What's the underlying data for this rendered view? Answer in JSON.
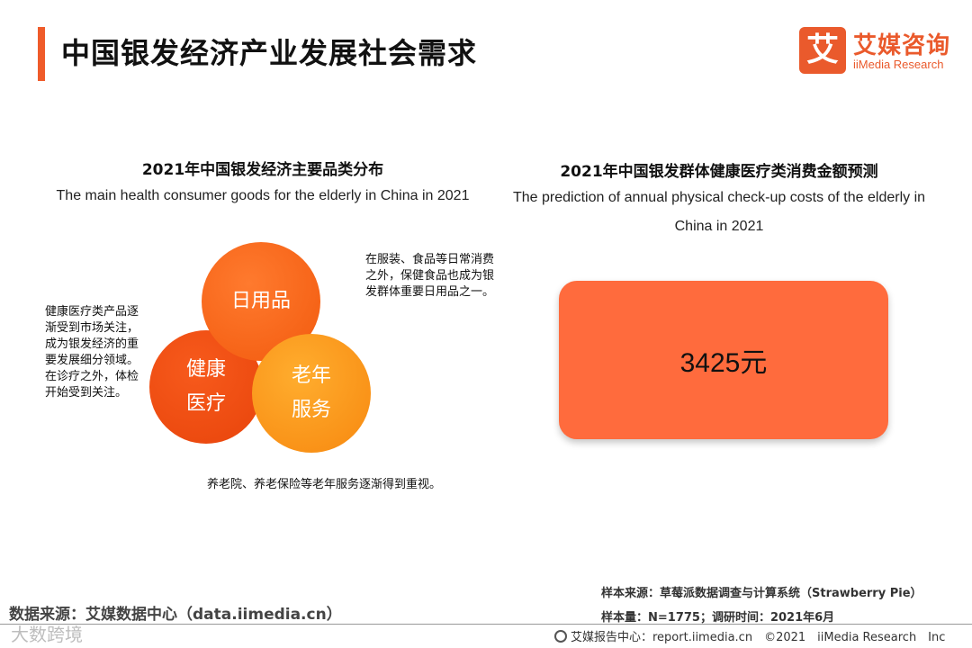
{
  "header": {
    "title": "中国银发经济产业发展社会需求",
    "logo_icon": "艾",
    "logo_cn": "艾媒咨询",
    "logo_en": "iiMedia Research",
    "accent_color": "#ef5b2a"
  },
  "left_panel": {
    "title": "2021年中国银发经济主要品类分布",
    "subtitle": "The main health consumer goods for the elderly in China in 2021",
    "circles": {
      "daily": "日用品",
      "health": "健康\n医疗",
      "service": "老年\n服务"
    },
    "notes": {
      "daily": "在服装、食品等日常消费之外，保健食品也成为银发群体重要日用品之一。",
      "health": "健康医疗类产品逐渐受到市场关注，成为银发经济的重要发展细分领域。在诊疗之外，体检开始受到关注。",
      "service": "养老院、养老保险等老年服务逐渐得到重视。"
    }
  },
  "right_panel": {
    "title": "2021年中国银发群体健康医疗类消费金额预测",
    "subtitle": "The prediction of annual physical check-up costs of the elderly in China in 2021",
    "value": "3425元",
    "box_color": "#ff6b3d"
  },
  "footer": {
    "data_source": "数据来源：艾媒数据中心（data.iimedia.cn）",
    "watermark": "大数跨境",
    "sample_source": "样本来源：草莓派数据调查与计算系统（Strawberry Pie）",
    "sample_size": "样本量：N=1775；调研时间：2021年6月",
    "report_center": "艾媒报告中心：report.iimedia.cn　©2021　iiMedia Research　Inc"
  }
}
